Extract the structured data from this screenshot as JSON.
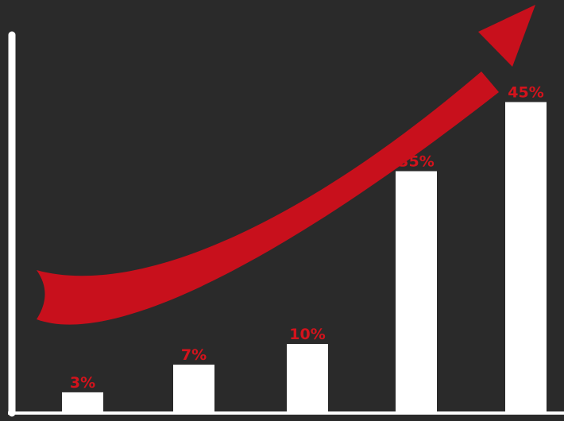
{
  "chart_data": {
    "type": "bar",
    "categories": [
      "",
      "",
      "",
      "",
      ""
    ],
    "values": [
      3,
      7,
      10,
      35,
      45
    ],
    "labels": [
      "3%",
      "7%",
      "10%",
      "35%",
      "45%"
    ],
    "unit": "%",
    "ylim": [
      0,
      60
    ],
    "grid": false,
    "legend": "none",
    "title": "",
    "xlabel": "",
    "ylabel": "",
    "annotations": [
      {
        "type": "trend-arrow",
        "direction": "up-right",
        "color": "#c8101c"
      }
    ]
  },
  "colors": {
    "background": "#2a2a2a",
    "bar": "#ffffff",
    "label": "#d3131c",
    "arrow": "#c8101c",
    "axis": "#ffffff"
  }
}
